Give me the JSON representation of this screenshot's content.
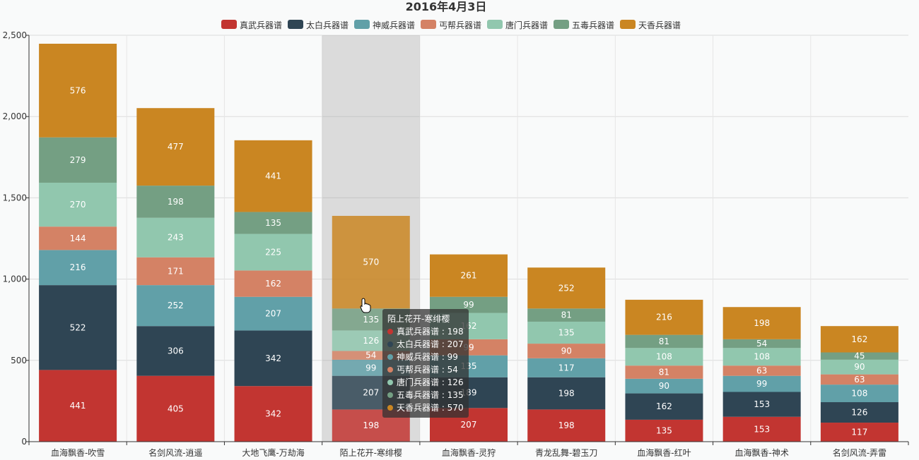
{
  "chart_data": {
    "type": "bar",
    "stacked": true,
    "title": "2016年4月3日",
    "categories": [
      "血海飘香-吹雪",
      "名剑风流-逍遥",
      "大地飞鹰-万劫海",
      "陌上花开-寒绯樱",
      "血海飘香-灵狩",
      "青龙乱舞-碧玉刀",
      "血海飘香-红叶",
      "血海飘香-神术",
      "名剑风流-弄雷"
    ],
    "ylim": [
      0,
      2500
    ],
    "yticks": [
      "0",
      "500",
      "1,000",
      "1,500",
      "2,000",
      "2,500"
    ],
    "legend_position": "top-center",
    "series": [
      {
        "name": "真武兵器谱",
        "color": "#c23531",
        "values": [
          441,
          405,
          342,
          198,
          207,
          198,
          135,
          153,
          117
        ]
      },
      {
        "name": "太白兵器谱",
        "color": "#2f4554",
        "values": [
          522,
          306,
          342,
          207,
          189,
          198,
          162,
          153,
          126
        ]
      },
      {
        "name": "神威兵器谱",
        "color": "#61a0a8",
        "values": [
          216,
          252,
          207,
          99,
          135,
          117,
          90,
          99,
          108
        ]
      },
      {
        "name": "丐帮兵器谱",
        "color": "#d48265",
        "values": [
          144,
          171,
          162,
          54,
          99,
          90,
          81,
          63,
          63
        ]
      },
      {
        "name": "唐门兵器谱",
        "color": "#91c7ae",
        "values": [
          270,
          243,
          225,
          126,
          162,
          135,
          108,
          108,
          90
        ]
      },
      {
        "name": "五毒兵器谱",
        "color": "#749f83",
        "values": [
          279,
          198,
          135,
          135,
          99,
          81,
          81,
          54,
          45
        ]
      },
      {
        "name": "天香兵器谱",
        "color": "#ca8622",
        "values": [
          576,
          477,
          441,
          570,
          261,
          252,
          216,
          198,
          162
        ]
      }
    ],
    "highlighted_category_index": 3,
    "tooltip": {
      "title": "陌上花开-寒绯樱",
      "items": [
        {
          "text": "真武兵器谱 : 198",
          "color": "#c23531"
        },
        {
          "text": "太白兵器谱 : 207",
          "color": "#2f4554"
        },
        {
          "text": "神威兵器谱 : 99",
          "color": "#61a0a8"
        },
        {
          "text": "丐帮兵器谱 : 54",
          "color": "#d48265"
        },
        {
          "text": "唐门兵器谱 : 126",
          "color": "#91c7ae"
        },
        {
          "text": "五毒兵器谱 : 135",
          "color": "#749f83"
        },
        {
          "text": "天香兵器谱 : 570",
          "color": "#ca8622"
        }
      ]
    }
  }
}
